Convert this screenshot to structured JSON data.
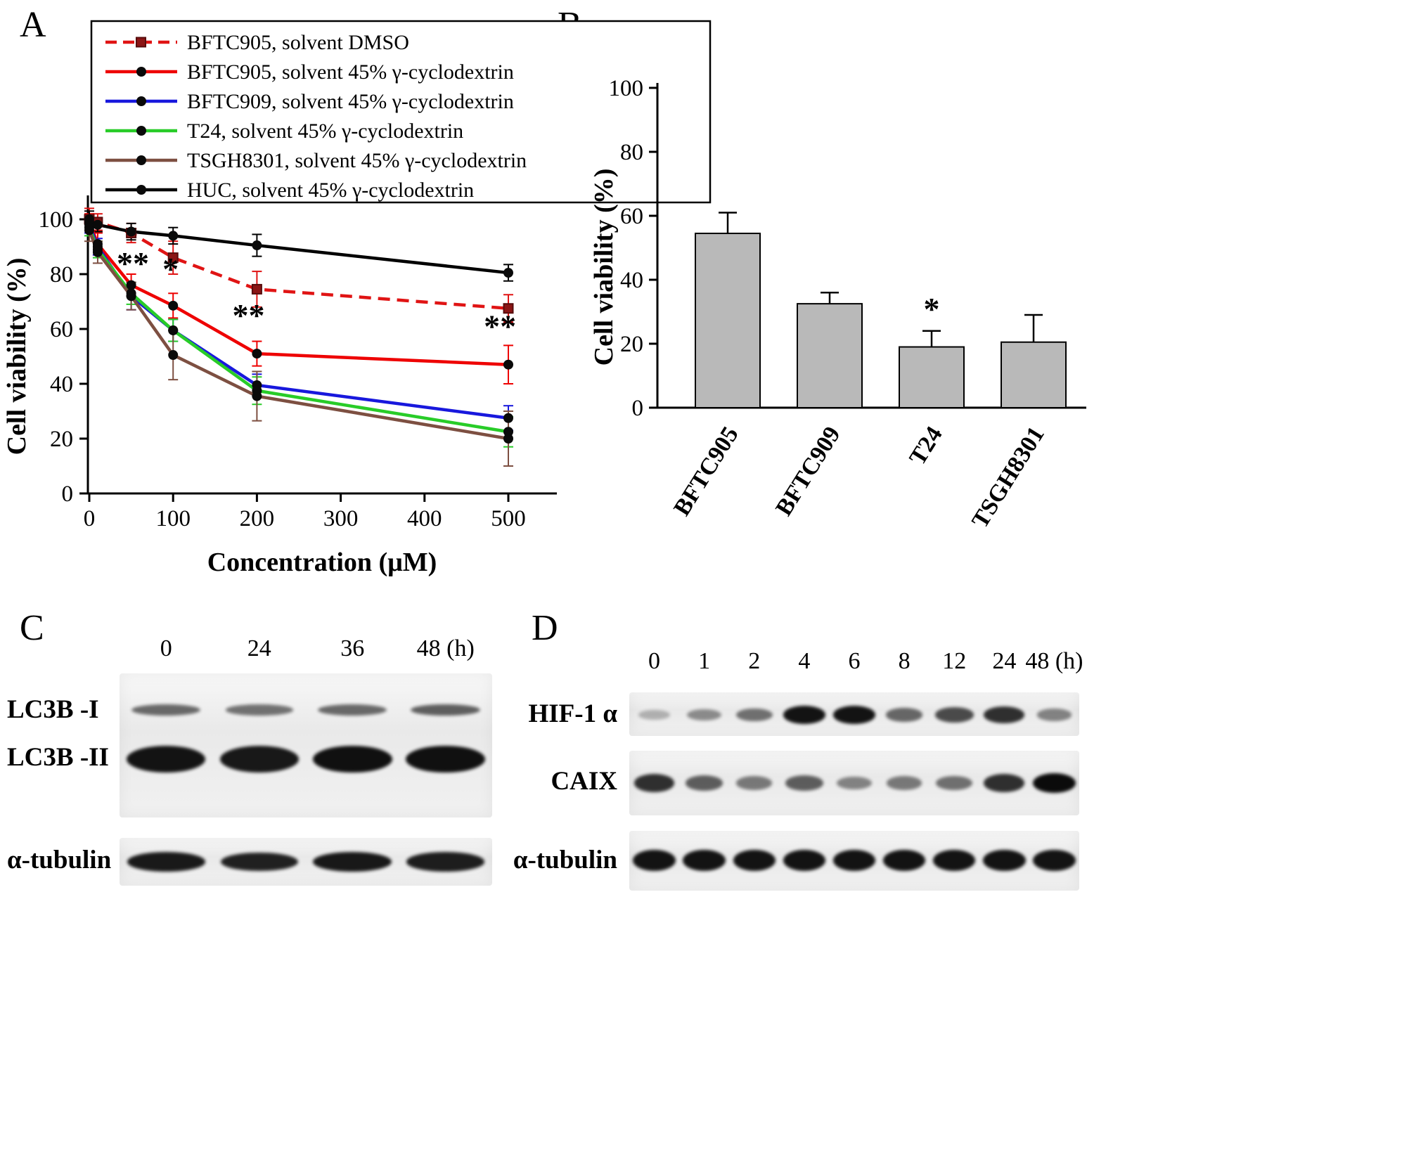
{
  "panels": {
    "A": "A",
    "B": "B",
    "C": "C",
    "D": "D"
  },
  "chart_data": [
    {
      "type": "line",
      "panel": "A",
      "xlabel": "Concentration (μM)",
      "ylabel": "Cell viability (%)",
      "xlim": [
        0,
        560
      ],
      "ylim": [
        0,
        108
      ],
      "xticks": [
        0,
        100,
        200,
        300,
        400,
        500
      ],
      "yticks": [
        0,
        20,
        40,
        60,
        80,
        100
      ],
      "grid": false,
      "legend_position": "top",
      "x": [
        0,
        10,
        50,
        100,
        200,
        500
      ],
      "series": [
        {
          "name": "BFTC905, solvent DMSO",
          "color": "#e01414",
          "dash": true,
          "marker": "square",
          "values": [
            100,
            99,
            95,
            86,
            74.5,
            67.5
          ],
          "errors": [
            4,
            3,
            3.5,
            6,
            6.5,
            5
          ]
        },
        {
          "name": "BFTC905, solvent 45% γ-cyclodextrin",
          "color": "#ee0000",
          "dash": false,
          "marker": "circle",
          "values": [
            99,
            91,
            76,
            68.5,
            51,
            47
          ],
          "errors": [
            3,
            4,
            4,
            4.5,
            4.5,
            7
          ]
        },
        {
          "name": "BFTC909, solvent 45% γ-cyclodextrin",
          "color": "#1818dd",
          "dash": false,
          "marker": "circle",
          "values": [
            98,
            90,
            72,
            59.5,
            39.5,
            27.5
          ],
          "errors": [
            3,
            3,
            5,
            4,
            4,
            4.5
          ]
        },
        {
          "name": "T24, solvent 45% γ-cyclodextrin",
          "color": "#28cc28",
          "dash": false,
          "marker": "circle",
          "values": [
            97,
            89,
            73,
            59.5,
            37.5,
            22.5
          ],
          "errors": [
            3,
            3,
            4,
            4,
            5,
            5.5
          ]
        },
        {
          "name": "TSGH8301, solvent 45% γ-cyclodextrin",
          "color": "#7d4f41",
          "dash": false,
          "marker": "circle",
          "values": [
            96,
            88,
            72,
            50.5,
            35.5,
            20
          ],
          "errors": [
            4,
            4,
            5,
            9,
            9,
            10
          ]
        },
        {
          "name": "HUC, solvent 45% γ-cyclodextrin",
          "color": "#000000",
          "dash": false,
          "marker": "circle",
          "values": [
            100,
            98,
            95.5,
            94,
            90.5,
            80.5
          ],
          "errors": [
            3,
            2.5,
            3,
            3,
            4,
            3
          ]
        }
      ],
      "annotations": [
        {
          "text": "**",
          "x": 52,
          "y": 80
        },
        {
          "text": "*",
          "x": 97,
          "y": 78
        },
        {
          "text": "**",
          "x": 190,
          "y": 61
        },
        {
          "text": "**",
          "x": 490,
          "y": 57
        }
      ]
    },
    {
      "type": "bar",
      "panel": "B",
      "ylabel": "Cell viability (%)",
      "ylim": [
        0,
        100
      ],
      "yticks": [
        0,
        20,
        40,
        60,
        80,
        100
      ],
      "categories": [
        "BFTC905",
        "BFTC909",
        "T24",
        "TSGH8301"
      ],
      "values": [
        54.5,
        32.5,
        19,
        20.5
      ],
      "errors": [
        6.5,
        3.5,
        5,
        8.5
      ],
      "bar_color": "#b9b9b9",
      "annotations": [
        {
          "text": "*",
          "category": "T24"
        }
      ]
    }
  ],
  "panel_c": {
    "lane_labels": [
      "0",
      "24",
      "36",
      "48 (h)"
    ],
    "rows": [
      {
        "label": "LC3B -I",
        "intensities": [
          0.5,
          0.45,
          0.5,
          0.55
        ]
      },
      {
        "label": "LC3B -II",
        "intensities": [
          0.95,
          0.93,
          0.97,
          0.97
        ]
      },
      {
        "label": "α-tubulin",
        "intensities": [
          0.92,
          0.88,
          0.93,
          0.9
        ]
      }
    ]
  },
  "panel_d": {
    "lane_labels": [
      "0",
      "1",
      "2",
      "4",
      "6",
      "8",
      "12",
      "24",
      "48 (h)"
    ],
    "rows": [
      {
        "label": "HIF-1 α",
        "intensities": [
          0.1,
          0.3,
          0.45,
          0.95,
          0.95,
          0.5,
          0.65,
          0.8,
          0.35
        ]
      },
      {
        "label": "CAIX",
        "intensities": [
          0.8,
          0.55,
          0.4,
          0.55,
          0.35,
          0.4,
          0.45,
          0.8,
          1.0
        ]
      },
      {
        "label": "α-tubulin",
        "intensities": [
          0.95,
          0.95,
          0.95,
          0.95,
          0.95,
          0.95,
          0.95,
          0.95,
          0.95
        ]
      }
    ]
  }
}
